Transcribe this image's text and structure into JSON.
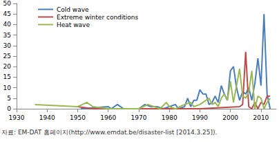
{
  "chart_data": {
    "type": "line",
    "annotation": "자료: EM-DAT 홈페이지(http://www.emdat.be/disaster-list [2014.3.25]).",
    "xlim": [
      1930,
      2015
    ],
    "xticks": [
      1930,
      1940,
      1950,
      1960,
      1970,
      1980,
      1990,
      2000,
      2010
    ],
    "ylim": [
      0,
      50
    ],
    "yticks": [
      0,
      5,
      10,
      15,
      20,
      25,
      30,
      35,
      40,
      45,
      50
    ],
    "grid": false,
    "legend": "upper left",
    "series": [
      {
        "name": "Cold wave",
        "color": "#4a7ebb",
        "x": [
          1951,
          1960,
          1961,
          1963,
          1965,
          1970,
          1972,
          1974,
          1976,
          1978,
          1980,
          1982,
          1983,
          1985,
          1986,
          1987,
          1988,
          1989,
          1990,
          1991,
          1992,
          1993,
          1994,
          1995,
          1996,
          1997,
          1998,
          1999,
          2000,
          2001,
          2002,
          2003,
          2004,
          2005,
          2006,
          2007,
          2008,
          2009,
          2010,
          2011,
          2012,
          2013
        ],
        "values": [
          0,
          1,
          0,
          2,
          0,
          0,
          2,
          1,
          1,
          0,
          1,
          2,
          0,
          1,
          5,
          1,
          4,
          4,
          9,
          7,
          7,
          2,
          3,
          6,
          3,
          11,
          7,
          4,
          18,
          20,
          10,
          4,
          8,
          7,
          10,
          4,
          12,
          24,
          11,
          45,
          7,
          0
        ]
      },
      {
        "name": "Extreme winter conditions",
        "color": "#be4b48",
        "x": [
          1950,
          1955,
          1990,
          2003,
          2004,
          2005,
          2006,
          2007,
          2008,
          2009,
          2010,
          2011,
          2012,
          2013
        ],
        "values": [
          1,
          0,
          0,
          1,
          2,
          27,
          1,
          0,
          3,
          0,
          3,
          2,
          6,
          6
        ]
      },
      {
        "name": "Heat wave",
        "color": "#98b954",
        "x": [
          1936,
          1950,
          1953,
          1955,
          1960,
          1965,
          1970,
          1973,
          1975,
          1977,
          1979,
          1980,
          1982,
          1985,
          1987,
          1988,
          1990,
          1991,
          1993,
          1994,
          1995,
          1996,
          1997,
          1998,
          1999,
          2000,
          2001,
          2002,
          2003,
          2004,
          2005,
          2006,
          2007,
          2008,
          2009,
          2010,
          2011,
          2012,
          2013
        ],
        "values": [
          2,
          1,
          3,
          1,
          0,
          0,
          0,
          2,
          1,
          0,
          3,
          1,
          0,
          2,
          3,
          1,
          2,
          3,
          5,
          2,
          3,
          1,
          5,
          7,
          4,
          13,
          3,
          11,
          19,
          6,
          5,
          8,
          18,
          0,
          6,
          5,
          0,
          3,
          5
        ]
      }
    ]
  }
}
